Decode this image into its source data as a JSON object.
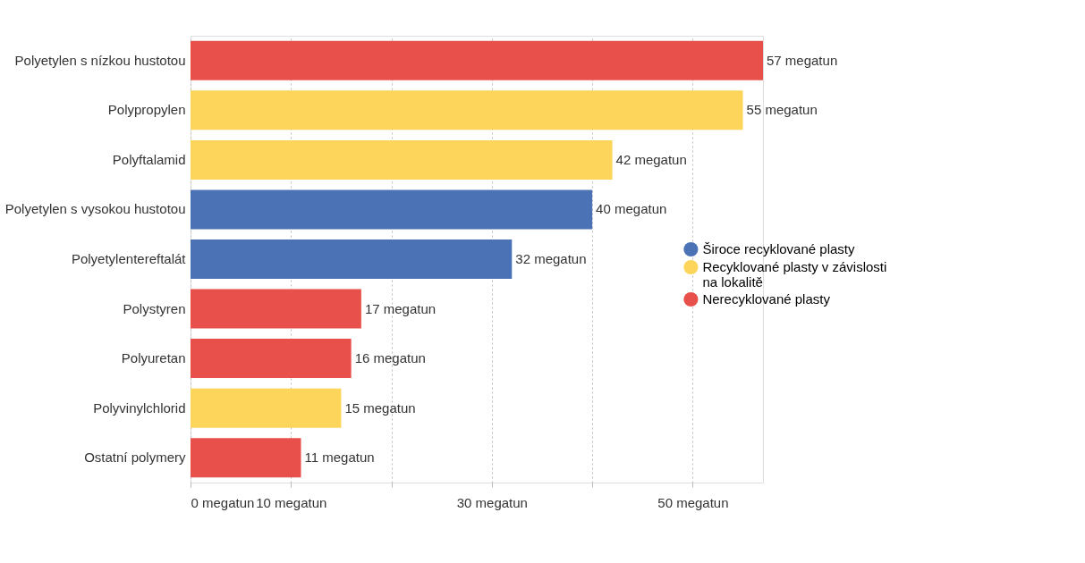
{
  "chart_data": {
    "type": "bar",
    "orientation": "horizontal",
    "categories": [
      "Polyetylen s nízkou hustotou",
      "Polypropylen",
      "Polyftalamid",
      "Polyetylen s vysokou hustotou",
      "Polyetylentereftalát",
      "Polystyren",
      "Polyuretan",
      "Polyvinylchlorid",
      "Ostatní polymery"
    ],
    "series": [
      {
        "name": "Široce recyklované plasty",
        "color": "#4c72b6",
        "values": [
          null,
          null,
          null,
          40,
          32,
          null,
          null,
          null,
          null
        ]
      },
      {
        "name": "Recyklované plasty v závislosti na lokalitě",
        "color": "#fcd55a",
        "values": [
          null,
          55,
          42,
          null,
          null,
          null,
          null,
          15,
          null
        ]
      },
      {
        "name": "Nerecyklované plasty",
        "color": "#e8514b",
        "values": [
          57,
          null,
          null,
          null,
          null,
          17,
          16,
          null,
          11
        ]
      }
    ],
    "value_labels": [
      "57 megatun",
      "55 megatun",
      "42 megatun",
      "40 megatun",
      "32 megatun",
      "17 megatun",
      "16 megatun",
      "15 megatun",
      "11 megatun"
    ],
    "xlim": [
      0,
      57
    ],
    "xticks": [
      {
        "value": 0,
        "label": "0 megatun"
      },
      {
        "value": 10,
        "label": "10 megatun"
      },
      {
        "value": 20,
        "label": null
      },
      {
        "value": 30,
        "label": "30 megatun"
      },
      {
        "value": 40,
        "label": null
      },
      {
        "value": 50,
        "label": "50 megatun"
      }
    ],
    "grid": "x",
    "legend": "right"
  }
}
